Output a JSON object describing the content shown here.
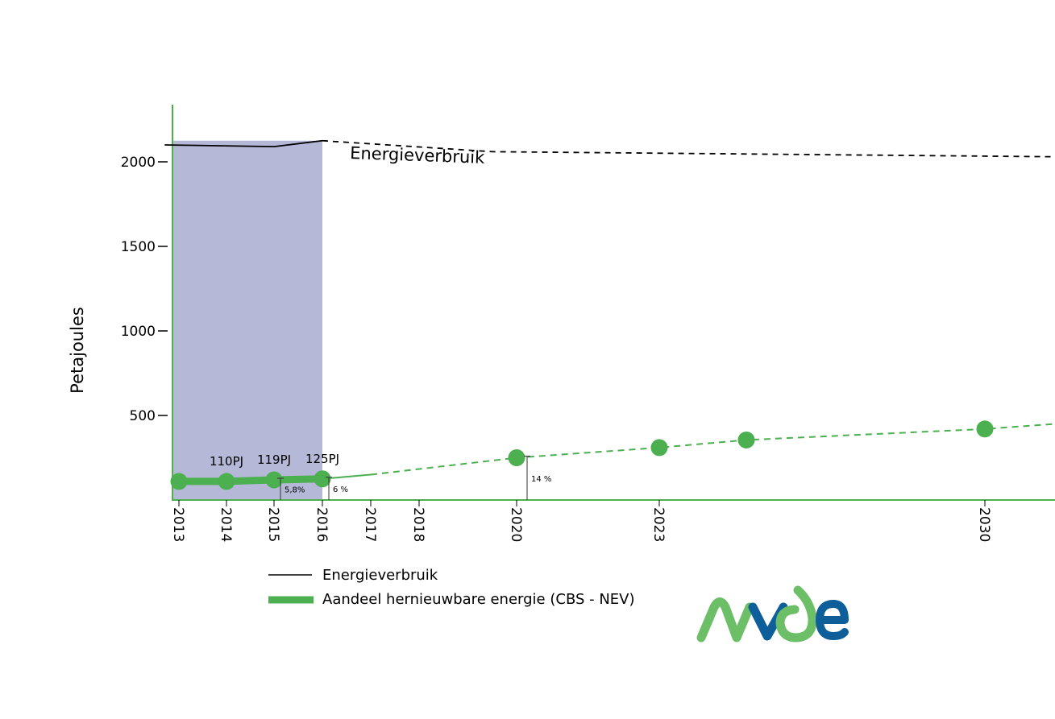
{
  "chart_data": {
    "type": "line",
    "ylabel": "Petajoules",
    "ylim": [
      0,
      2300
    ],
    "yticks": [
      500,
      1000,
      1500,
      2000
    ],
    "ytick_labels": [
      "500",
      "1000",
      "1500",
      "2000"
    ],
    "xticks": [
      2013,
      2014,
      2015,
      2016,
      2017,
      2018,
      2020,
      2023,
      2030
    ],
    "xtick_labels": [
      "2013",
      "2014",
      "2015",
      "2016",
      "2017",
      "2018",
      "2020",
      "2023",
      "2030"
    ],
    "historical_period": [
      2013,
      2016
    ],
    "series": [
      {
        "name": "Energieverbruik",
        "color": "#000000",
        "historical": {
          "x": [
            2012.7,
            2015,
            2016
          ],
          "y": [
            2100,
            2090,
            2125
          ]
        },
        "projection": {
          "x": [
            2016,
            2019.5,
            2031.4
          ],
          "y": [
            2125,
            2060,
            2030
          ]
        },
        "inline_label": "Energieverbruik"
      },
      {
        "name": "Aandeel hernieuwbare energie (CBS - NEV)",
        "color": "#4caf50",
        "historical": {
          "x": [
            2013,
            2014,
            2015,
            2016
          ],
          "y": [
            110,
            110,
            119,
            125
          ]
        },
        "solid_bridge": {
          "x": [
            2016,
            2017
          ],
          "y": [
            125,
            150
          ]
        },
        "projection": {
          "x": [
            2017,
            2020,
            2023,
            2025,
            2030,
            2031.4
          ],
          "y": [
            150,
            250,
            310,
            355,
            420,
            450
          ]
        },
        "markers": {
          "x": [
            2013,
            2014,
            2015,
            2016,
            2020,
            2023,
            2025,
            2030
          ],
          "y": [
            110,
            110,
            119,
            125,
            250,
            310,
            355,
            420
          ]
        },
        "point_labels": [
          {
            "x": 2014,
            "text": "110PJ"
          },
          {
            "x": 2015,
            "text": "119PJ"
          },
          {
            "x": 2016,
            "text": "125PJ"
          }
        ],
        "share_annotations": [
          {
            "x": 2015,
            "y": 119,
            "text": "5,8%"
          },
          {
            "x": 2016,
            "y": 125,
            "text": "6 %"
          },
          {
            "x": 2020,
            "y": 250,
            "text": "14 %"
          }
        ]
      }
    ],
    "legend": [
      {
        "label": "Energieverbruik",
        "style": "thin-black-line"
      },
      {
        "label": "Aandeel hernieuwbare energie (CBS - NEV)",
        "style": "thick-green-line"
      }
    ],
    "colors": {
      "axis": "#4caf50",
      "shade": "#b6b8d8",
      "renewable": "#4caf50",
      "logo_green": "#6cbf66",
      "logo_blue": "#0e5e9a"
    }
  },
  "logo": {
    "text": "nvde"
  }
}
